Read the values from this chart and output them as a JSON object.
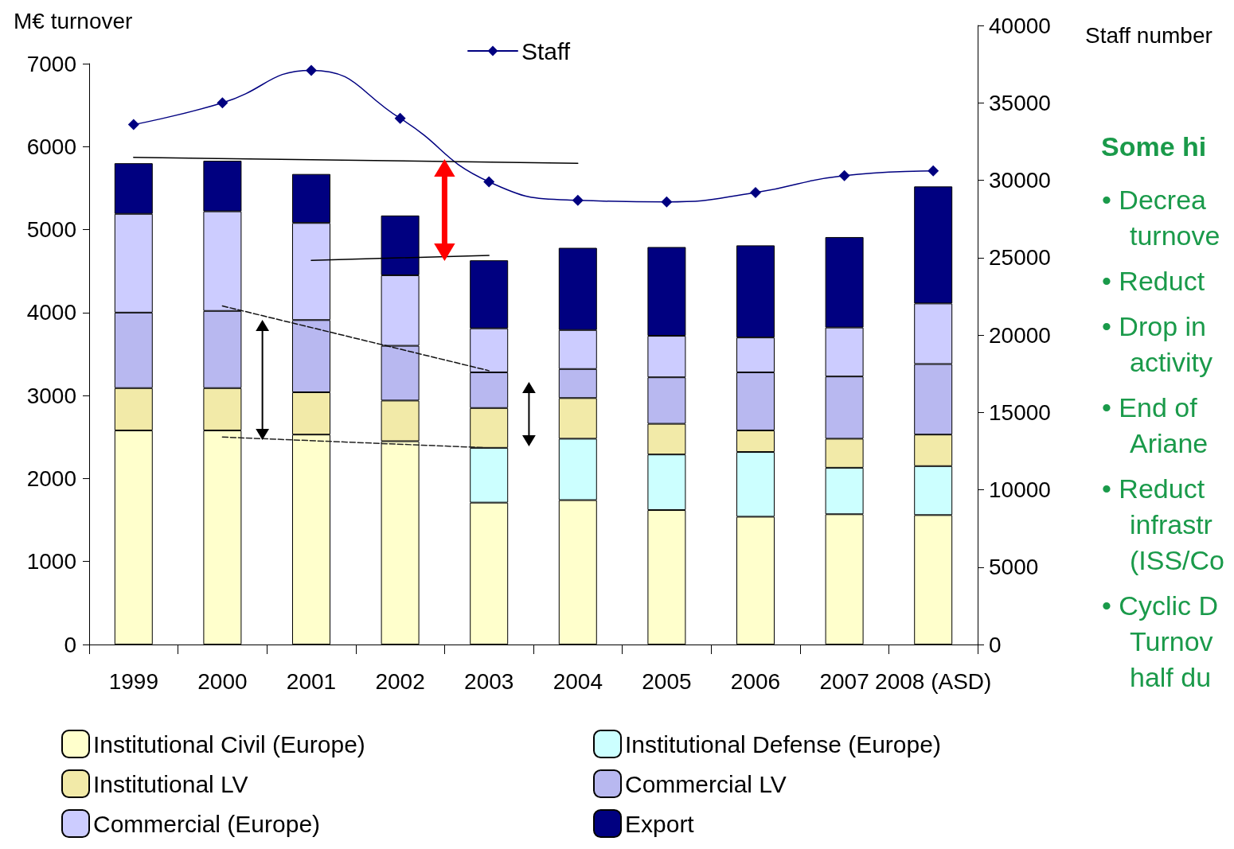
{
  "chart_data": {
    "type": "bar",
    "stacked": true,
    "ylabel": "M€ turnover",
    "y2label": "Staff number",
    "categories": [
      "1999",
      "2000",
      "2001",
      "2002",
      "2003",
      "2004",
      "2005",
      "2006",
      "2007",
      "2008 (ASD)"
    ],
    "series": [
      {
        "name": "Institutional Civil (Europe)",
        "color": "#ffffcc",
        "values": [
          2580,
          2580,
          2530,
          2450,
          1710,
          1740,
          1620,
          1540,
          1570,
          1560
        ]
      },
      {
        "name": "Institutional Defense (Europe)",
        "color": "#ccffff",
        "values": [
          null,
          null,
          null,
          null,
          660,
          740,
          670,
          780,
          560,
          590
        ]
      },
      {
        "name": "Institutional LV",
        "color": "#f2eaa8",
        "values": [
          510,
          510,
          510,
          490,
          480,
          490,
          370,
          260,
          350,
          380
        ]
      },
      {
        "name": "Commercial LV",
        "color": "#b8b8f0",
        "values": [
          910,
          930,
          870,
          660,
          430,
          350,
          560,
          700,
          750,
          850
        ]
      },
      {
        "name": "Commercial (Europe)",
        "color": "#ccccff",
        "values": [
          1190,
          1200,
          1170,
          850,
          530,
          470,
          500,
          420,
          590,
          730
        ]
      },
      {
        "name": "Export",
        "color": "#000080",
        "values": [
          610,
          610,
          590,
          720,
          820,
          990,
          1070,
          1110,
          1090,
          1410
        ]
      },
      {
        "name": "Staff",
        "type": "line",
        "axis": "y2",
        "color": "#000080",
        "marker": "diamond",
        "values": [
          33600,
          35000,
          37100,
          34000,
          29900,
          28700,
          28600,
          29200,
          30300,
          30600
        ]
      },
      {
        "type": "line",
        "color": "#000000",
        "line_style": "solid",
        "marker": "none",
        "values": [
          5870,
          null,
          null,
          null,
          null,
          5800,
          null,
          null,
          null,
          null
        ]
      },
      {
        "type": "line",
        "color": "#000000",
        "line_style": "solid",
        "marker": "none",
        "values": [
          null,
          null,
          4630,
          null,
          4690,
          null,
          null,
          null,
          null,
          null
        ]
      },
      {
        "type": "line",
        "color": "#111111",
        "line_style": "dashed",
        "marker": "none",
        "values": [
          null,
          4080,
          null,
          null,
          3300,
          null,
          null,
          null,
          null,
          null
        ]
      },
      {
        "type": "line",
        "color": "#222222",
        "line_style": "dashed",
        "marker": "none",
        "values": [
          null,
          2500,
          null,
          null,
          2370,
          null,
          null,
          null,
          null,
          null
        ]
      }
    ],
    "ylim": [
      0,
      7000
    ],
    "yticks": [
      0,
      1000,
      2000,
      3000,
      4000,
      5000,
      6000,
      7000
    ],
    "y2lim": [
      0,
      40000
    ],
    "y2ticks": [
      0,
      5000,
      10000,
      15000,
      20000,
      25000,
      30000,
      35000,
      40000
    ],
    "grid": false,
    "legend": "bottom",
    "annotations": [
      "Some hi",
      "• Decrea\nturnove",
      "• Reduct",
      "• Drop in\nactivity",
      "• End of\nAriane",
      "• Reduct\ninfrastr\n(ISS/Co",
      "• Cyclic D\nTurnov\nhalf du"
    ]
  }
}
